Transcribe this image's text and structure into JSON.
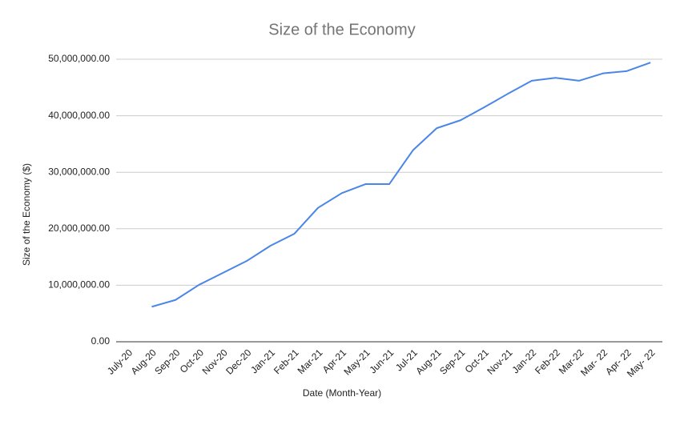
{
  "chart_data": {
    "type": "line",
    "title": "Size of the Economy",
    "x_label": "Date (Month-Year)",
    "y_label": "Size of the Economy ($)",
    "categories": [
      "July-20",
      "Aug-20",
      "Sep-20",
      "Oct-20",
      "Nov-20",
      "Dec-20",
      "Jan-21",
      "Feb-21",
      "Mar-21",
      "Apr-21",
      "May-21",
      "Jun-21",
      "Jul-21",
      "Aug-21",
      "Sep-21",
      "Oct-21",
      "Nov-21",
      "Jan-22",
      "Feb-22",
      "Mar-22",
      "Mar- 22",
      "Apr- 22",
      "May- 22"
    ],
    "series": [
      {
        "name": "Size of the Economy",
        "color": "#4a86e8",
        "values": [
          null,
          6200000,
          7400000,
          10100000,
          12200000,
          14300000,
          17000000,
          19100000,
          23700000,
          26300000,
          27900000,
          27900000,
          33900000,
          37800000,
          39200000,
          41500000,
          43900000,
          46200000,
          46700000,
          46200000,
          47500000,
          47900000,
          49400000
        ]
      }
    ],
    "ylim": [
      0,
      50000000
    ],
    "yticks": [
      {
        "value": 0,
        "label": "0.00"
      },
      {
        "value": 10000000,
        "label": "10,000,000.00"
      },
      {
        "value": 20000000,
        "label": "20,000,000.00"
      },
      {
        "value": 30000000,
        "label": "30,000,000.00"
      },
      {
        "value": 40000000,
        "label": "40,000,000.00"
      },
      {
        "value": 50000000,
        "label": "50,000,000.00"
      }
    ],
    "grid": true
  }
}
